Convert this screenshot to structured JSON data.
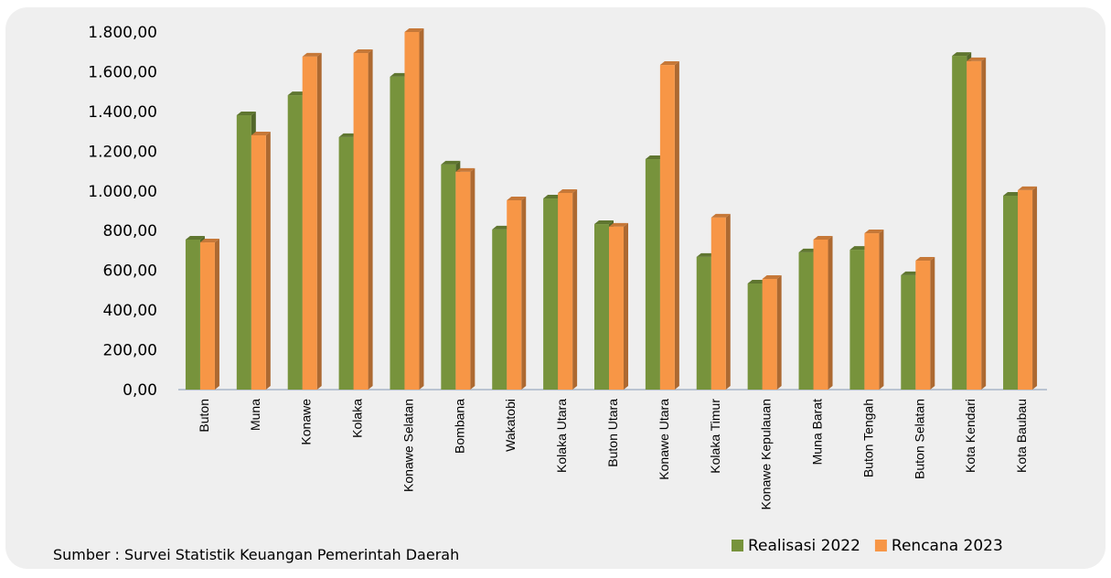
{
  "chart_data": {
    "type": "bar",
    "categories": [
      "Buton",
      "Muna",
      "Konawe",
      "Kolaka",
      "Konawe Selatan",
      "Bombana",
      "Wakatobi",
      "Kolaka Utara",
      "Buton Utara",
      "Konawe Utara",
      "Kolaka Timur",
      "Konawe Kepulauan",
      "Muna Barat",
      "Buton Tengah",
      "Buton Selatan",
      "Kota Kendari",
      "Kota Baubau"
    ],
    "series": [
      {
        "name": "Realisasi 2022",
        "color": "#77933c",
        "values": [
          755,
          1381,
          1482,
          1271,
          1575,
          1133,
          806,
          962,
          833,
          1160,
          668,
          534,
          691,
          704,
          576,
          1680,
          976
        ]
      },
      {
        "name": "Rencana 2023",
        "color": "#f79646",
        "values": [
          741,
          1280,
          1676,
          1694,
          1800,
          1096,
          953,
          990,
          820,
          1634,
          866,
          557,
          755,
          787,
          649,
          1653,
          1004
        ]
      }
    ],
    "ylim": [
      0,
      1800
    ],
    "yticks": [
      {
        "value": 0,
        "label": "0,00"
      },
      {
        "value": 200,
        "label": "200,00"
      },
      {
        "value": 400,
        "label": "400,00"
      },
      {
        "value": 600,
        "label": "600,00"
      },
      {
        "value": 800,
        "label": "800,00"
      },
      {
        "value": 1000,
        "label": "1.000,00"
      },
      {
        "value": 1200,
        "label": "1.200,00"
      },
      {
        "value": 1400,
        "label": "1.400,00"
      },
      {
        "value": 1600,
        "label": "1.600,00"
      },
      {
        "value": 1800,
        "label": "1.800,00"
      }
    ],
    "grid": false,
    "legend": "lower right",
    "source": "Sumber : Survei Statistik Keuangan Pemerintah Daerah"
  }
}
